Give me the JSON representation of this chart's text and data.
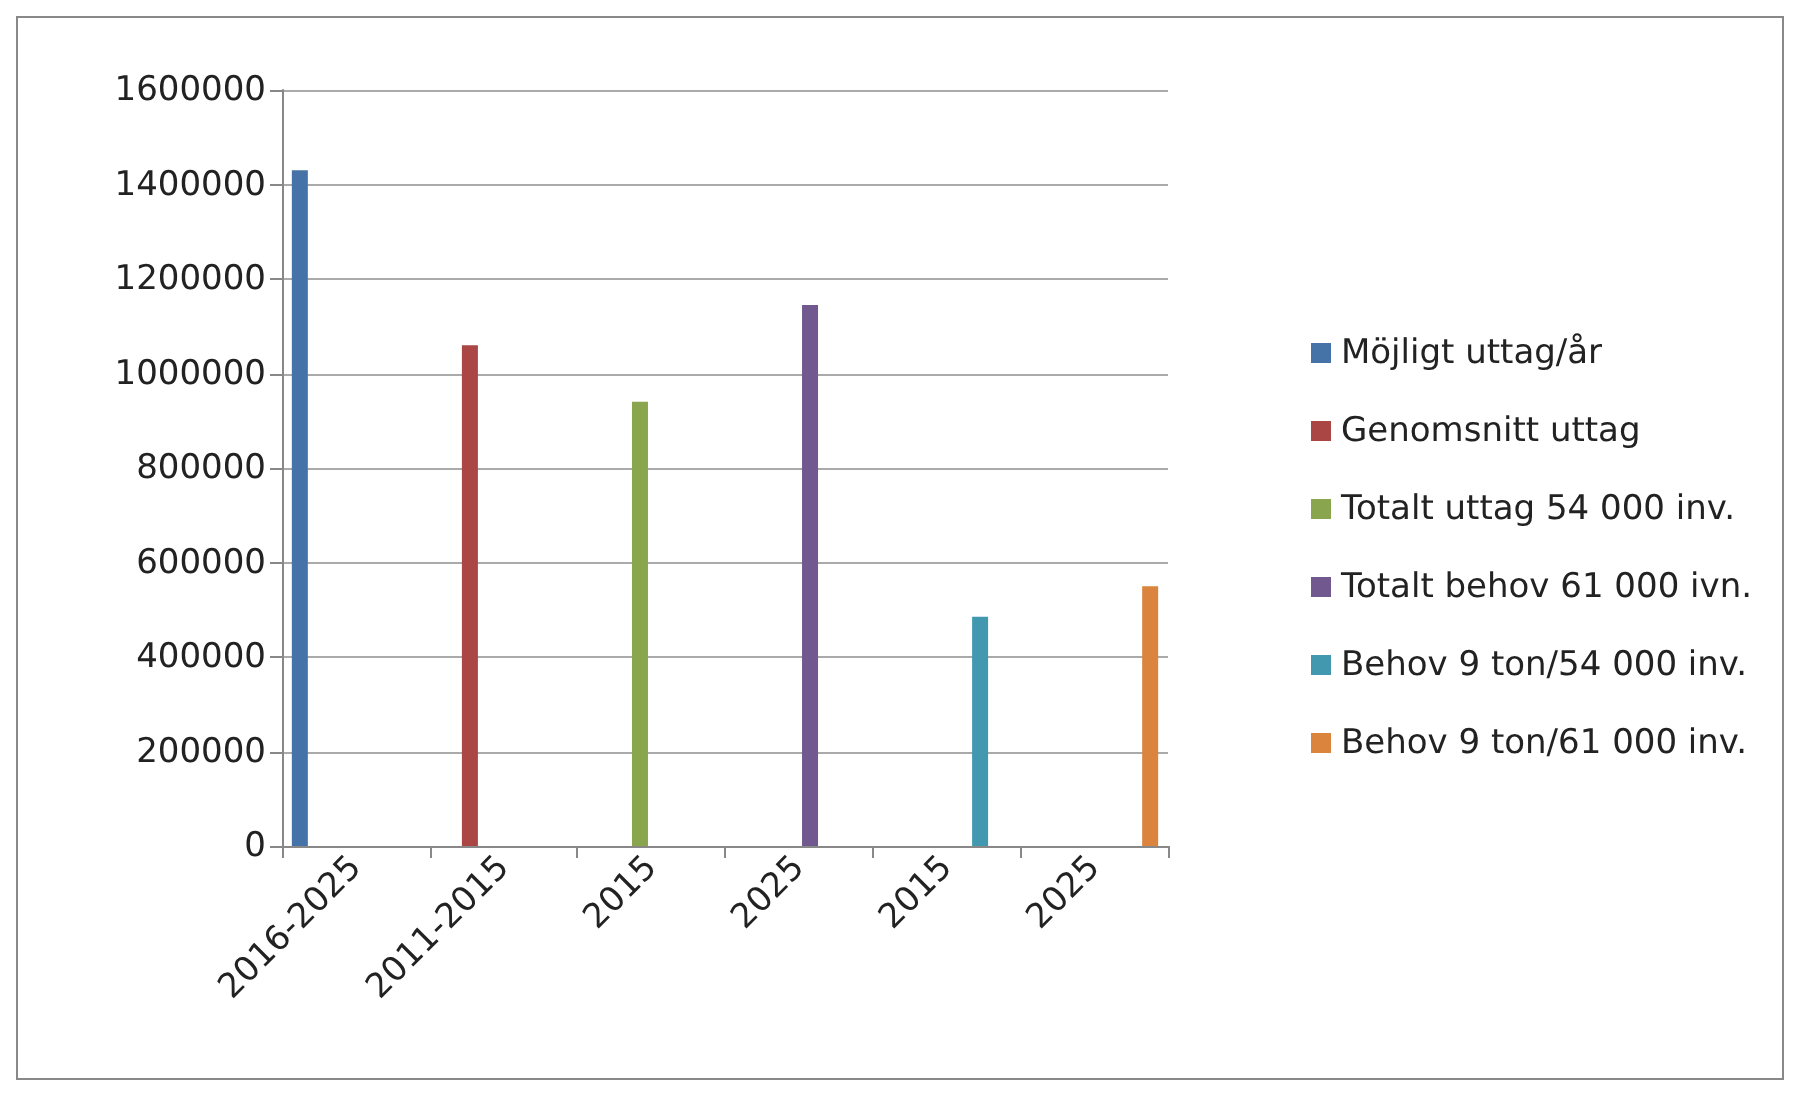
{
  "chart_data": {
    "type": "bar",
    "categories": [
      "2016-2025",
      "2011-2015",
      "2015",
      "2025",
      "2015",
      "2025"
    ],
    "series": [
      {
        "name": "Möjligt uttag/år",
        "color": "#4572a7",
        "values": [
          1430000,
          null,
          null,
          null,
          null,
          null
        ]
      },
      {
        "name": "Genomsnitt uttag",
        "color": "#aa4643",
        "values": [
          null,
          1060000,
          null,
          null,
          null,
          null
        ]
      },
      {
        "name": "Totalt uttag 54 000 inv.",
        "color": "#89a54e",
        "values": [
          null,
          null,
          940000,
          null,
          null,
          null
        ]
      },
      {
        "name": "Totalt behov 61 000 ivn.",
        "color": "#71588f",
        "values": [
          null,
          null,
          null,
          1145000,
          null,
          null
        ]
      },
      {
        "name": "Behov 9 ton/54 000 inv.",
        "color": "#4198af",
        "values": [
          null,
          null,
          null,
          null,
          485000,
          null
        ]
      },
      {
        "name": "Behov 9 ton/61 000 inv.",
        "color": "#db843d",
        "values": [
          null,
          null,
          null,
          null,
          null,
          550000
        ]
      }
    ],
    "ylim": [
      0,
      1600000
    ],
    "yticks": [
      0,
      200000,
      400000,
      600000,
      800000,
      1000000,
      1200000,
      1400000,
      1600000
    ],
    "grid": "y",
    "legend": "right"
  }
}
